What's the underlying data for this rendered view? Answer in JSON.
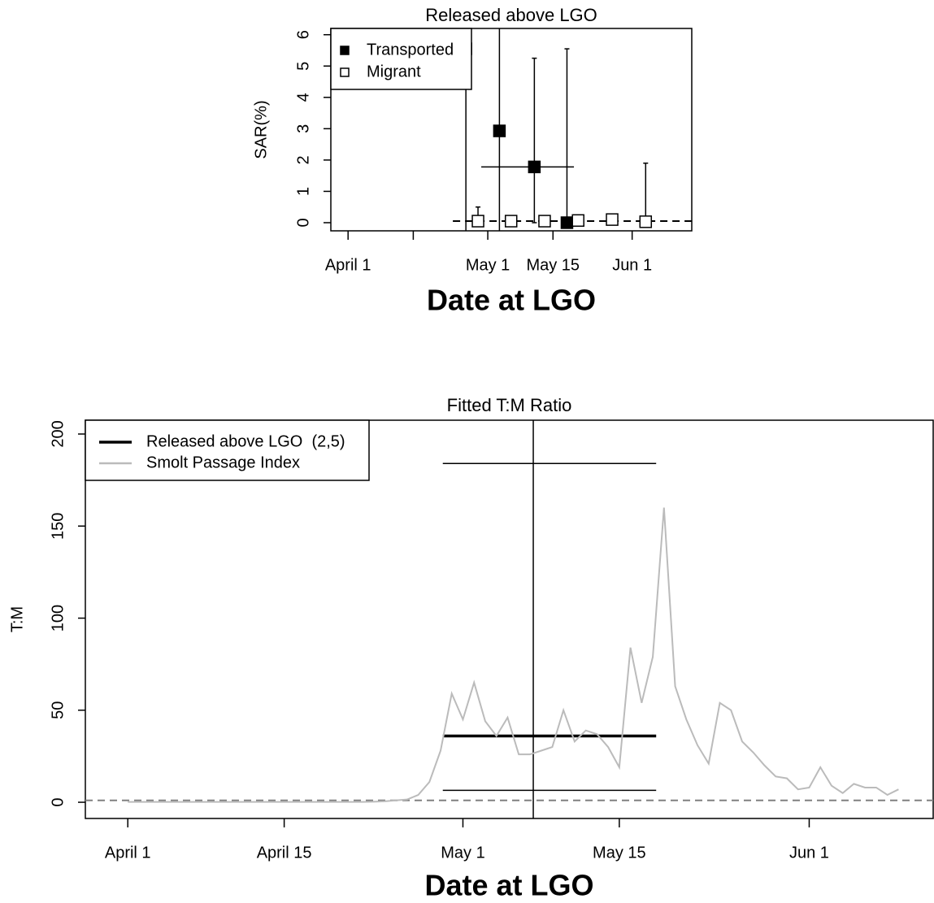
{
  "chart_data": [
    {
      "type": "scatter",
      "title": "Released above LGO",
      "y_label": "SAR(%)",
      "x_label": "Date at LGO",
      "xlim": [
        87.3,
        164.8
      ],
      "ylim": [
        -0.26,
        6.2
      ],
      "xticks": [
        {
          "value": 91,
          "label": "April 1"
        },
        {
          "value": 105,
          "label": null
        },
        {
          "value": 121,
          "label": "May 1"
        },
        {
          "value": 135,
          "label": "May 15"
        },
        {
          "value": 152,
          "label": "Jun 1"
        }
      ],
      "yticks": [
        0,
        1,
        2,
        3,
        4,
        5,
        6
      ],
      "legend": "top-left",
      "series": [
        {
          "name": "Transported",
          "color": "#000000",
          "marker": "filled",
          "x": [
            116.3,
            123.5,
            131,
            138
          ],
          "values": [
            5.55,
            2.93,
            1.78,
            0
          ],
          "lower": [
            -0.5,
            -0.5,
            0,
            0
          ],
          "upper": [
            7,
            7,
            5.25,
            5.55
          ],
          "x_lower": [
            null,
            null,
            119.6,
            null
          ],
          "x_upper": [
            null,
            null,
            139.5,
            null
          ]
        },
        {
          "name": "Migrant",
          "color": "#000000",
          "marker": "open",
          "x": [
            118.9,
            126,
            133.2,
            140.4,
            147.7,
            154.9
          ],
          "values": [
            0.05,
            0.05,
            0.05,
            0.07,
            0.1,
            0.03
          ],
          "lower": [
            0,
            0,
            0,
            -0.05,
            -0.05,
            0
          ],
          "upper": [
            0.5,
            0.12,
            0.1,
            0.2,
            0.25,
            1.9
          ]
        }
      ],
      "reference_line": {
        "y": 0.05,
        "x_start": 113.5,
        "color": "#000000"
      }
    },
    {
      "type": "line",
      "title": "Fitted T:M Ratio",
      "y_label": "T:M",
      "x_label": "Date at LGO",
      "xlim": [
        87.2,
        163.1
      ],
      "ylim": [
        -8.8,
        207.5
      ],
      "xticks": [
        {
          "value": 91,
          "label": "April 1"
        },
        {
          "value": 105,
          "label": "April 15"
        },
        {
          "value": 121,
          "label": "May 1"
        },
        {
          "value": 135,
          "label": "May 15"
        },
        {
          "value": 152,
          "label": "Jun 1"
        }
      ],
      "yticks": [
        0,
        50,
        100,
        150,
        200
      ],
      "legend": "top-left",
      "series": [
        {
          "name": "Released above LGO  (2,5)",
          "color": "#000000",
          "x": [
            119.2,
            138.3
          ],
          "values": [
            36,
            36
          ],
          "lower": [
            6.5,
            6.5
          ],
          "upper": [
            184,
            184
          ],
          "vline_x": 127.3
        },
        {
          "name": "Smolt Passage Index",
          "color": "#bbbbbb",
          "x": [
            91,
            92,
            93,
            94,
            95,
            96,
            97,
            98,
            99,
            100,
            101,
            102,
            103,
            104,
            105,
            106,
            107,
            108,
            109,
            110,
            111,
            112,
            113,
            114,
            115,
            116,
            117,
            118,
            119,
            120,
            121,
            122,
            123,
            124,
            125,
            126,
            127,
            128,
            129,
            130,
            131,
            132,
            133,
            134,
            135,
            136,
            137,
            138,
            139,
            140,
            141,
            142,
            143,
            144,
            145,
            146,
            147,
            148,
            149,
            150,
            151,
            152,
            153,
            154,
            155,
            156,
            157,
            158,
            159,
            160
          ],
          "values": [
            0.2,
            0.2,
            0.2,
            0.2,
            0.2,
            0.2,
            0.2,
            0.2,
            0.2,
            0.2,
            0.2,
            0.2,
            0.2,
            0.2,
            0.2,
            0.2,
            0.2,
            0.2,
            0.2,
            0.2,
            0.2,
            0.2,
            0.3,
            0.5,
            1,
            1.5,
            4,
            11,
            28,
            59,
            45,
            65,
            44,
            36,
            46,
            26,
            26,
            28,
            30,
            50,
            33,
            39,
            37,
            30,
            19,
            84,
            54,
            79,
            160,
            63,
            45,
            31,
            21,
            54,
            50,
            33,
            27,
            20,
            14,
            13,
            7,
            8,
            19,
            9,
            5,
            10,
            8,
            8,
            4,
            7
          ]
        }
      ],
      "reference_line": {
        "y": 1,
        "color": "#808080"
      }
    }
  ]
}
